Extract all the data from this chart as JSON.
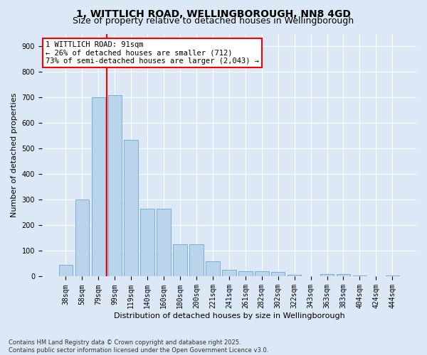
{
  "title_line1": "1, WITTLICH ROAD, WELLINGBOROUGH, NN8 4GD",
  "title_line2": "Size of property relative to detached houses in Wellingborough",
  "xlabel": "Distribution of detached houses by size in Wellingborough",
  "ylabel": "Number of detached properties",
  "footnote": "Contains HM Land Registry data © Crown copyright and database right 2025.\nContains public sector information licensed under the Open Government Licence v3.0.",
  "bar_labels": [
    "38sqm",
    "58sqm",
    "79sqm",
    "99sqm",
    "119sqm",
    "140sqm",
    "160sqm",
    "180sqm",
    "200sqm",
    "221sqm",
    "241sqm",
    "261sqm",
    "282sqm",
    "302sqm",
    "322sqm",
    "343sqm",
    "363sqm",
    "383sqm",
    "404sqm",
    "424sqm",
    "444sqm"
  ],
  "bar_values": [
    45,
    300,
    700,
    710,
    535,
    265,
    265,
    125,
    125,
    60,
    25,
    20,
    20,
    18,
    8,
    0,
    10,
    10,
    5,
    2,
    3
  ],
  "bar_color": "#bad4eb",
  "bar_edge_color": "#7aaed6",
  "vline_color": "red",
  "vline_pos": 2.5,
  "annotation_text": "1 WITTLICH ROAD: 91sqm\n← 26% of detached houses are smaller (712)\n73% of semi-detached houses are larger (2,043) →",
  "annotation_box_color": "white",
  "annotation_box_edge_color": "red",
  "ylim": [
    0,
    950
  ],
  "yticks": [
    0,
    100,
    200,
    300,
    400,
    500,
    600,
    700,
    800,
    900
  ],
  "background_color": "#dce8f5",
  "plot_bg_color": "#dce8f5",
  "grid_color": "white",
  "title_fontsize": 10,
  "subtitle_fontsize": 9,
  "axis_label_fontsize": 8,
  "tick_fontsize": 7,
  "annotation_fontsize": 7.5,
  "footnote_fontsize": 6
}
